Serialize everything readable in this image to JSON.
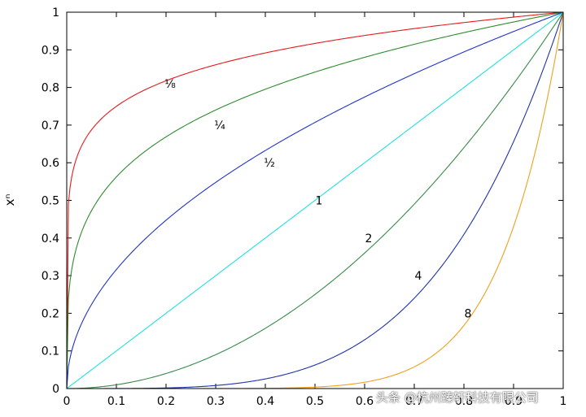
{
  "chart_data": {
    "type": "line",
    "title": "",
    "xlabel": "",
    "ylabel": "xⁿ",
    "xlim": [
      0,
      1
    ],
    "ylim": [
      0,
      1
    ],
    "grid": false,
    "legend": "none",
    "x_ticks": [
      "0",
      "0.1",
      "0.2",
      "0.3",
      "0.4",
      "0.5",
      "0.6",
      "0.7",
      "0.8",
      "0.9",
      "1"
    ],
    "y_ticks": [
      "0",
      "0.1",
      "0.2",
      "0.3",
      "0.4",
      "0.5",
      "0.6",
      "0.7",
      "0.8",
      "0.9",
      "1"
    ],
    "x": [
      0,
      0.05,
      0.1,
      0.15,
      0.2,
      0.25,
      0.3,
      0.35,
      0.4,
      0.45,
      0.5,
      0.55,
      0.6,
      0.65,
      0.7,
      0.75,
      0.8,
      0.85,
      0.9,
      0.95,
      1
    ],
    "series": [
      {
        "exponent": 0.125,
        "color": "#e41a1c",
        "label": "⅛",
        "label_at": [
          0.2,
          0.81
        ],
        "values": [
          0,
          0.688,
          0.75,
          0.789,
          0.818,
          0.841,
          0.86,
          0.877,
          0.892,
          0.905,
          0.917,
          0.928,
          0.938,
          0.948,
          0.956,
          0.965,
          0.972,
          0.98,
          0.987,
          0.994,
          1
        ]
      },
      {
        "exponent": 0.25,
        "color": "#2e8b2e",
        "label": "¼",
        "label_at": [
          0.3,
          0.7
        ],
        "values": [
          0,
          0.473,
          0.562,
          0.622,
          0.669,
          0.707,
          0.74,
          0.769,
          0.795,
          0.819,
          0.841,
          0.861,
          0.88,
          0.898,
          0.915,
          0.931,
          0.946,
          0.96,
          0.974,
          0.987,
          1
        ]
      },
      {
        "exponent": 0.5,
        "color": "#2233cc",
        "label": "½",
        "label_at": [
          0.4,
          0.6
        ],
        "values": [
          0,
          0.224,
          0.316,
          0.387,
          0.447,
          0.5,
          0.548,
          0.592,
          0.632,
          0.671,
          0.707,
          0.742,
          0.775,
          0.806,
          0.837,
          0.866,
          0.894,
          0.922,
          0.949,
          0.975,
          1
        ]
      },
      {
        "exponent": 1,
        "color": "#22e0e0",
        "label": "1",
        "label_at": [
          0.5,
          0.5
        ],
        "values": [
          0,
          0.05,
          0.1,
          0.15,
          0.2,
          0.25,
          0.3,
          0.35,
          0.4,
          0.45,
          0.5,
          0.55,
          0.6,
          0.65,
          0.7,
          0.75,
          0.8,
          0.85,
          0.9,
          0.95,
          1
        ]
      },
      {
        "exponent": 2,
        "color": "#3a8a4a",
        "label": "2",
        "label_at": [
          0.6,
          0.4
        ],
        "values": [
          0,
          0.003,
          0.01,
          0.023,
          0.04,
          0.063,
          0.09,
          0.123,
          0.16,
          0.203,
          0.25,
          0.303,
          0.36,
          0.423,
          0.49,
          0.563,
          0.64,
          0.723,
          0.81,
          0.903,
          1
        ]
      },
      {
        "exponent": 4,
        "color": "#2233aa",
        "label": "4",
        "label_at": [
          0.7,
          0.3
        ],
        "values": [
          0,
          0,
          0,
          0.001,
          0.002,
          0.004,
          0.008,
          0.015,
          0.026,
          0.041,
          0.063,
          0.092,
          0.13,
          0.179,
          0.24,
          0.316,
          0.41,
          0.522,
          0.656,
          0.815,
          1
        ]
      },
      {
        "exponent": 8,
        "color": "#f0a020",
        "label": "8",
        "label_at": [
          0.8,
          0.2
        ],
        "values": [
          0,
          0,
          0,
          0,
          0,
          0,
          0,
          0,
          0.001,
          0.002,
          0.004,
          0.008,
          0.017,
          0.032,
          0.058,
          0.1,
          0.168,
          0.272,
          0.43,
          0.663,
          1
        ]
      }
    ]
  },
  "watermark": "头条 @杭州臻轩科技有限公司"
}
